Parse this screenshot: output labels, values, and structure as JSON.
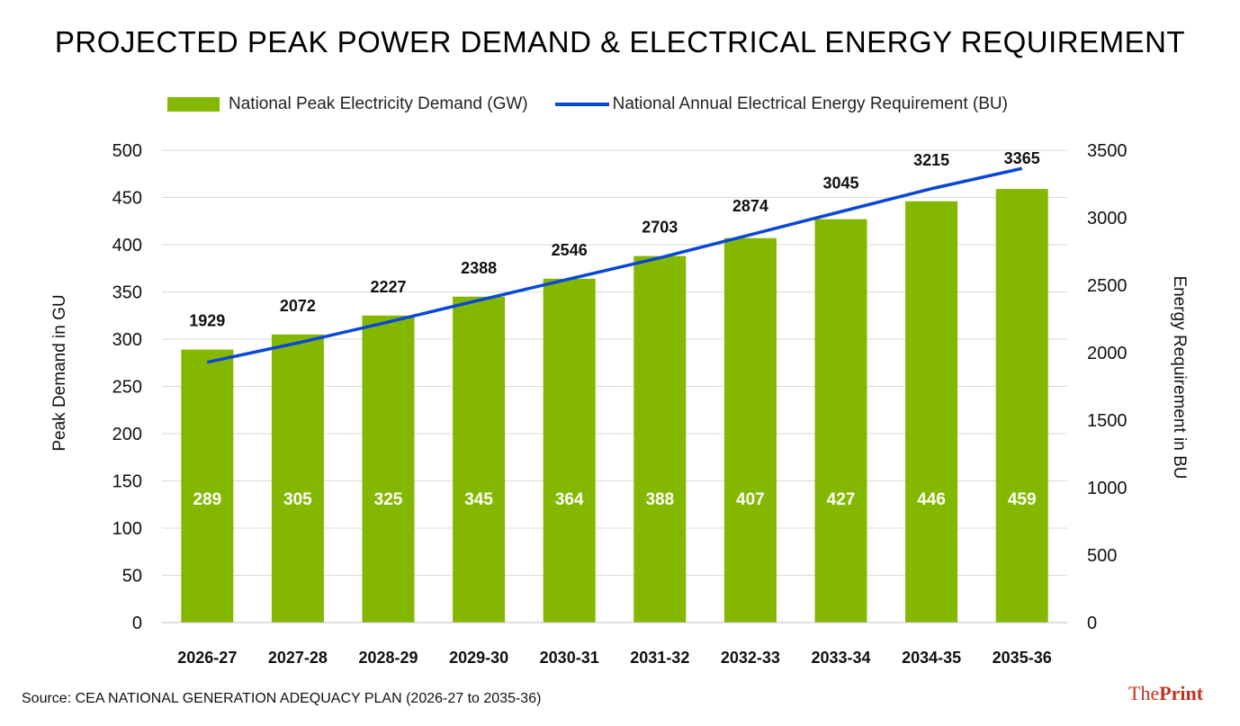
{
  "chart_data": {
    "type": "bar",
    "title": "PROJECTED PEAK POWER DEMAND & ELECTRICAL ENERGY REQUIREMENT",
    "categories": [
      "2026-27",
      "2027-28",
      "2028-29",
      "2029-30",
      "2030-31",
      "2031-32",
      "2032-33",
      "2033-34",
      "2034-35",
      "2035-36"
    ],
    "series": [
      {
        "name": "National Peak Electricity Demand (GW)",
        "kind": "bar",
        "axis": "left",
        "color": "#84b800",
        "values": [
          289,
          305,
          325,
          345,
          364,
          388,
          407,
          427,
          446,
          459
        ]
      },
      {
        "name": "National Annual Electrical Energy Requirement (BU)",
        "kind": "line",
        "axis": "right",
        "color": "#0a47d6",
        "values": [
          1929,
          2072,
          2227,
          2388,
          2546,
          2703,
          2874,
          3045,
          3215,
          3365
        ]
      }
    ],
    "ylabel": "Peak Demand in GU",
    "y2label": "Energy Requirement in BU",
    "ylim": [
      0,
      500
    ],
    "y2lim": [
      0,
      3500
    ],
    "yticks": [
      "0",
      "50",
      "100",
      "150",
      "200",
      "250",
      "300",
      "350",
      "400",
      "450",
      "500"
    ],
    "y2ticks": [
      "0",
      "500",
      "1000",
      "1500",
      "2000",
      "2500",
      "3000",
      "3500"
    ],
    "grid": true,
    "legend": "top"
  },
  "footer": {
    "source": "Source: CEA NATIONAL GENERATION ADEQUACY PLAN (2026-27 to 2035-36)",
    "logo_the": "The",
    "logo_print": "Print"
  }
}
